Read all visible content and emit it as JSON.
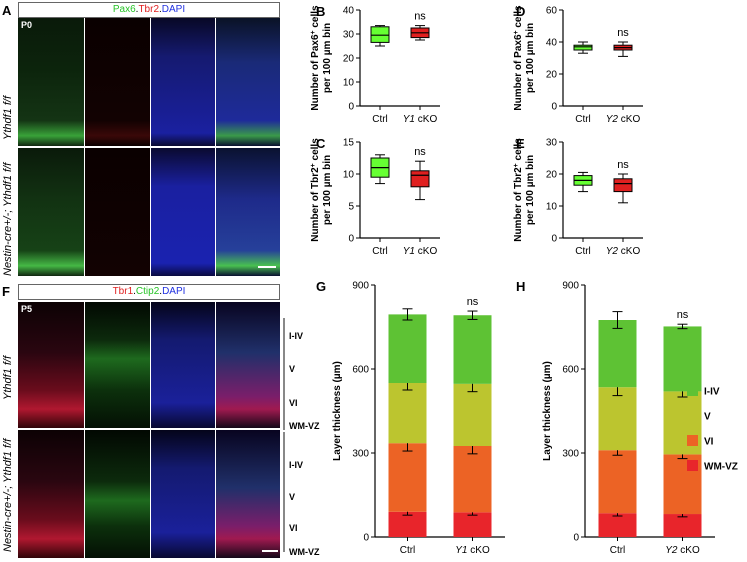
{
  "panels": {
    "A": {
      "letter": "A",
      "stain_labels": [
        {
          "text": "Pax6",
          "color": "#27c427"
        },
        {
          "text": ".",
          "color": "#000000"
        },
        {
          "text": "Tbr2",
          "color": "#e02020"
        },
        {
          "text": ".",
          "color": "#000000"
        },
        {
          "text": "DAPI",
          "color": "#2030e0"
        }
      ],
      "age": "P0",
      "rows": [
        "Ythdf1 f/f",
        "Nestin-cre+/-; Ythdf1 f/f"
      ]
    },
    "F": {
      "letter": "F",
      "stain_labels": [
        {
          "text": "Tbr1",
          "color": "#e02020"
        },
        {
          "text": ".",
          "color": "#000000"
        },
        {
          "text": "Ctip2",
          "color": "#27c427"
        },
        {
          "text": ".",
          "color": "#000000"
        },
        {
          "text": "DAPI",
          "color": "#2030e0"
        }
      ],
      "age": "P5",
      "rows": [
        "Ythdf1 f/f",
        "Nestin-cre+/-; Ythdf1 f/f"
      ],
      "layers": [
        "I-IV",
        "V",
        "VI",
        "WM-VZ"
      ]
    }
  },
  "chart_data": [
    {
      "id": "B",
      "type": "box",
      "letter": "B",
      "ylabel": "Number of Pax6+ cells per 100 µm bin",
      "ylim": [
        0,
        40
      ],
      "ticks": [
        0,
        10,
        20,
        30,
        40
      ],
      "categories": [
        "Ctrl",
        "Y1 cKO"
      ],
      "boxes": [
        {
          "min": 25,
          "q1": 26.5,
          "median": 29.5,
          "q3": 33,
          "max": 33.5,
          "color": "#66ff33"
        },
        {
          "min": 27.5,
          "q1": 28.5,
          "median": 30.5,
          "q3": 32.5,
          "max": 33.5,
          "color": "#e02020"
        }
      ],
      "annotation": "ns"
    },
    {
      "id": "D",
      "type": "box",
      "letter": "D",
      "ylabel": "Number of Pax6+ cells per 100 µm bin",
      "ylim": [
        0,
        60
      ],
      "ticks": [
        0,
        20,
        40,
        60
      ],
      "categories": [
        "Ctrl",
        "Y2 cKO"
      ],
      "boxes": [
        {
          "min": 33,
          "q1": 35,
          "median": 37,
          "q3": 38,
          "max": 40,
          "color": "#66ff33"
        },
        {
          "min": 31,
          "q1": 35,
          "median": 36.5,
          "q3": 38,
          "max": 40,
          "color": "#e02020"
        }
      ],
      "annotation": "ns"
    },
    {
      "id": "C",
      "type": "box",
      "letter": "C",
      "ylabel": "Number of Tbr2+ cells per 100 µm bin",
      "ylim": [
        0,
        15
      ],
      "ticks": [
        0,
        5,
        10,
        15
      ],
      "categories": [
        "Ctrl",
        "Y1 cKO"
      ],
      "boxes": [
        {
          "min": 8.5,
          "q1": 9.5,
          "median": 11,
          "q3": 12.5,
          "max": 13,
          "color": "#66ff33"
        },
        {
          "min": 6,
          "q1": 8,
          "median": 9.8,
          "q3": 10.5,
          "max": 12,
          "color": "#e02020"
        }
      ],
      "annotation": "ns"
    },
    {
      "id": "E",
      "type": "box",
      "letter": "E",
      "ylabel": "Number of Tbr2+ cells per 100 µm bin",
      "ylim": [
        0,
        30
      ],
      "ticks": [
        0,
        10,
        20,
        30
      ],
      "categories": [
        "Ctrl",
        "Y2 cKO"
      ],
      "boxes": [
        {
          "min": 14.5,
          "q1": 16.5,
          "median": 18,
          "q3": 19.5,
          "max": 20.5,
          "color": "#66ff33"
        },
        {
          "min": 11,
          "q1": 14.5,
          "median": 17,
          "q3": 18.5,
          "max": 20,
          "color": "#e02020"
        }
      ],
      "annotation": "ns"
    },
    {
      "id": "G",
      "type": "stacked-bar",
      "letter": "G",
      "ylabel": "Layer thickness (µm)",
      "ylim": [
        0,
        900
      ],
      "ticks": [
        0,
        300,
        600,
        900
      ],
      "categories": [
        "Ctrl",
        "Y1 cKO"
      ],
      "series": [
        {
          "name": "WM-VZ",
          "color": "#e8252b",
          "values": [
            90,
            88
          ],
          "errors": [
            12,
            10
          ]
        },
        {
          "name": "VI",
          "color": "#ec6325",
          "values": [
            245,
            237
          ],
          "errors": [
            28,
            28
          ]
        },
        {
          "name": "V",
          "color": "#bcc52f",
          "values": [
            215,
            222
          ],
          "errors": [
            25,
            28
          ]
        },
        {
          "name": "I-IV",
          "color": "#5ec234",
          "values": [
            245,
            245
          ],
          "errors": [
            20,
            15
          ]
        }
      ],
      "annotation": "ns"
    },
    {
      "id": "H",
      "type": "stacked-bar",
      "letter": "H",
      "ylabel": "Layer thickness (µm)",
      "ylim": [
        0,
        900
      ],
      "ticks": [
        0,
        300,
        600,
        900
      ],
      "categories": [
        "Ctrl",
        "Y2 cKO"
      ],
      "series": [
        {
          "name": "WM-VZ",
          "color": "#e8252b",
          "values": [
            85,
            82
          ],
          "errors": [
            10,
            10
          ]
        },
        {
          "name": "VI",
          "color": "#ec6325",
          "values": [
            225,
            213
          ],
          "errors": [
            18,
            15
          ]
        },
        {
          "name": "V",
          "color": "#bcc52f",
          "values": [
            225,
            225
          ],
          "errors": [
            30,
            20
          ]
        },
        {
          "name": "I-IV",
          "color": "#5ec234",
          "values": [
            240,
            232
          ],
          "errors": [
            30,
            8
          ]
        }
      ],
      "annotation": "ns"
    }
  ],
  "legend": [
    {
      "name": "I-IV",
      "color": "#5ec234"
    },
    {
      "name": "V",
      "color": "#bcc52f"
    },
    {
      "name": "VI",
      "color": "#ec6325"
    },
    {
      "name": "WM-VZ",
      "color": "#e8252b"
    }
  ]
}
